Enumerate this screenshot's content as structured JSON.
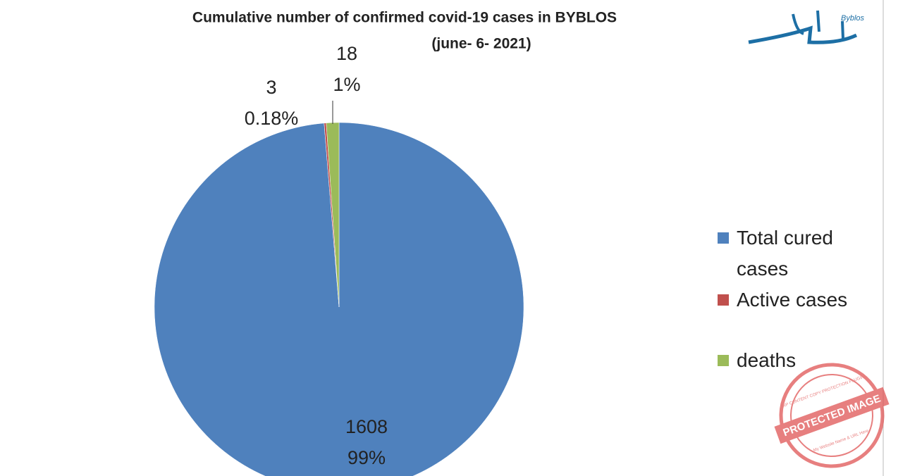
{
  "chart_data": {
    "type": "pie",
    "title": "Cumulative number of confirmed covid-19 cases in BYBLOS",
    "subtitle": "(june- 6- 2021)",
    "categories": [
      "Total cured cases",
      "Active cases",
      "deaths"
    ],
    "values": [
      1608,
      3,
      18
    ],
    "percent_labels": [
      "99%",
      "0.18%",
      "1%"
    ],
    "colors": [
      "#4f81bd",
      "#c0504d",
      "#9bbb59"
    ],
    "legend": "right"
  },
  "logo_text": "Byblos",
  "watermark": {
    "main": "PROTECTED IMAGE",
    "top": "WP CONTENT COPY PROTECTION PLUGIN",
    "bottom": "My Website Name & URL Here"
  }
}
